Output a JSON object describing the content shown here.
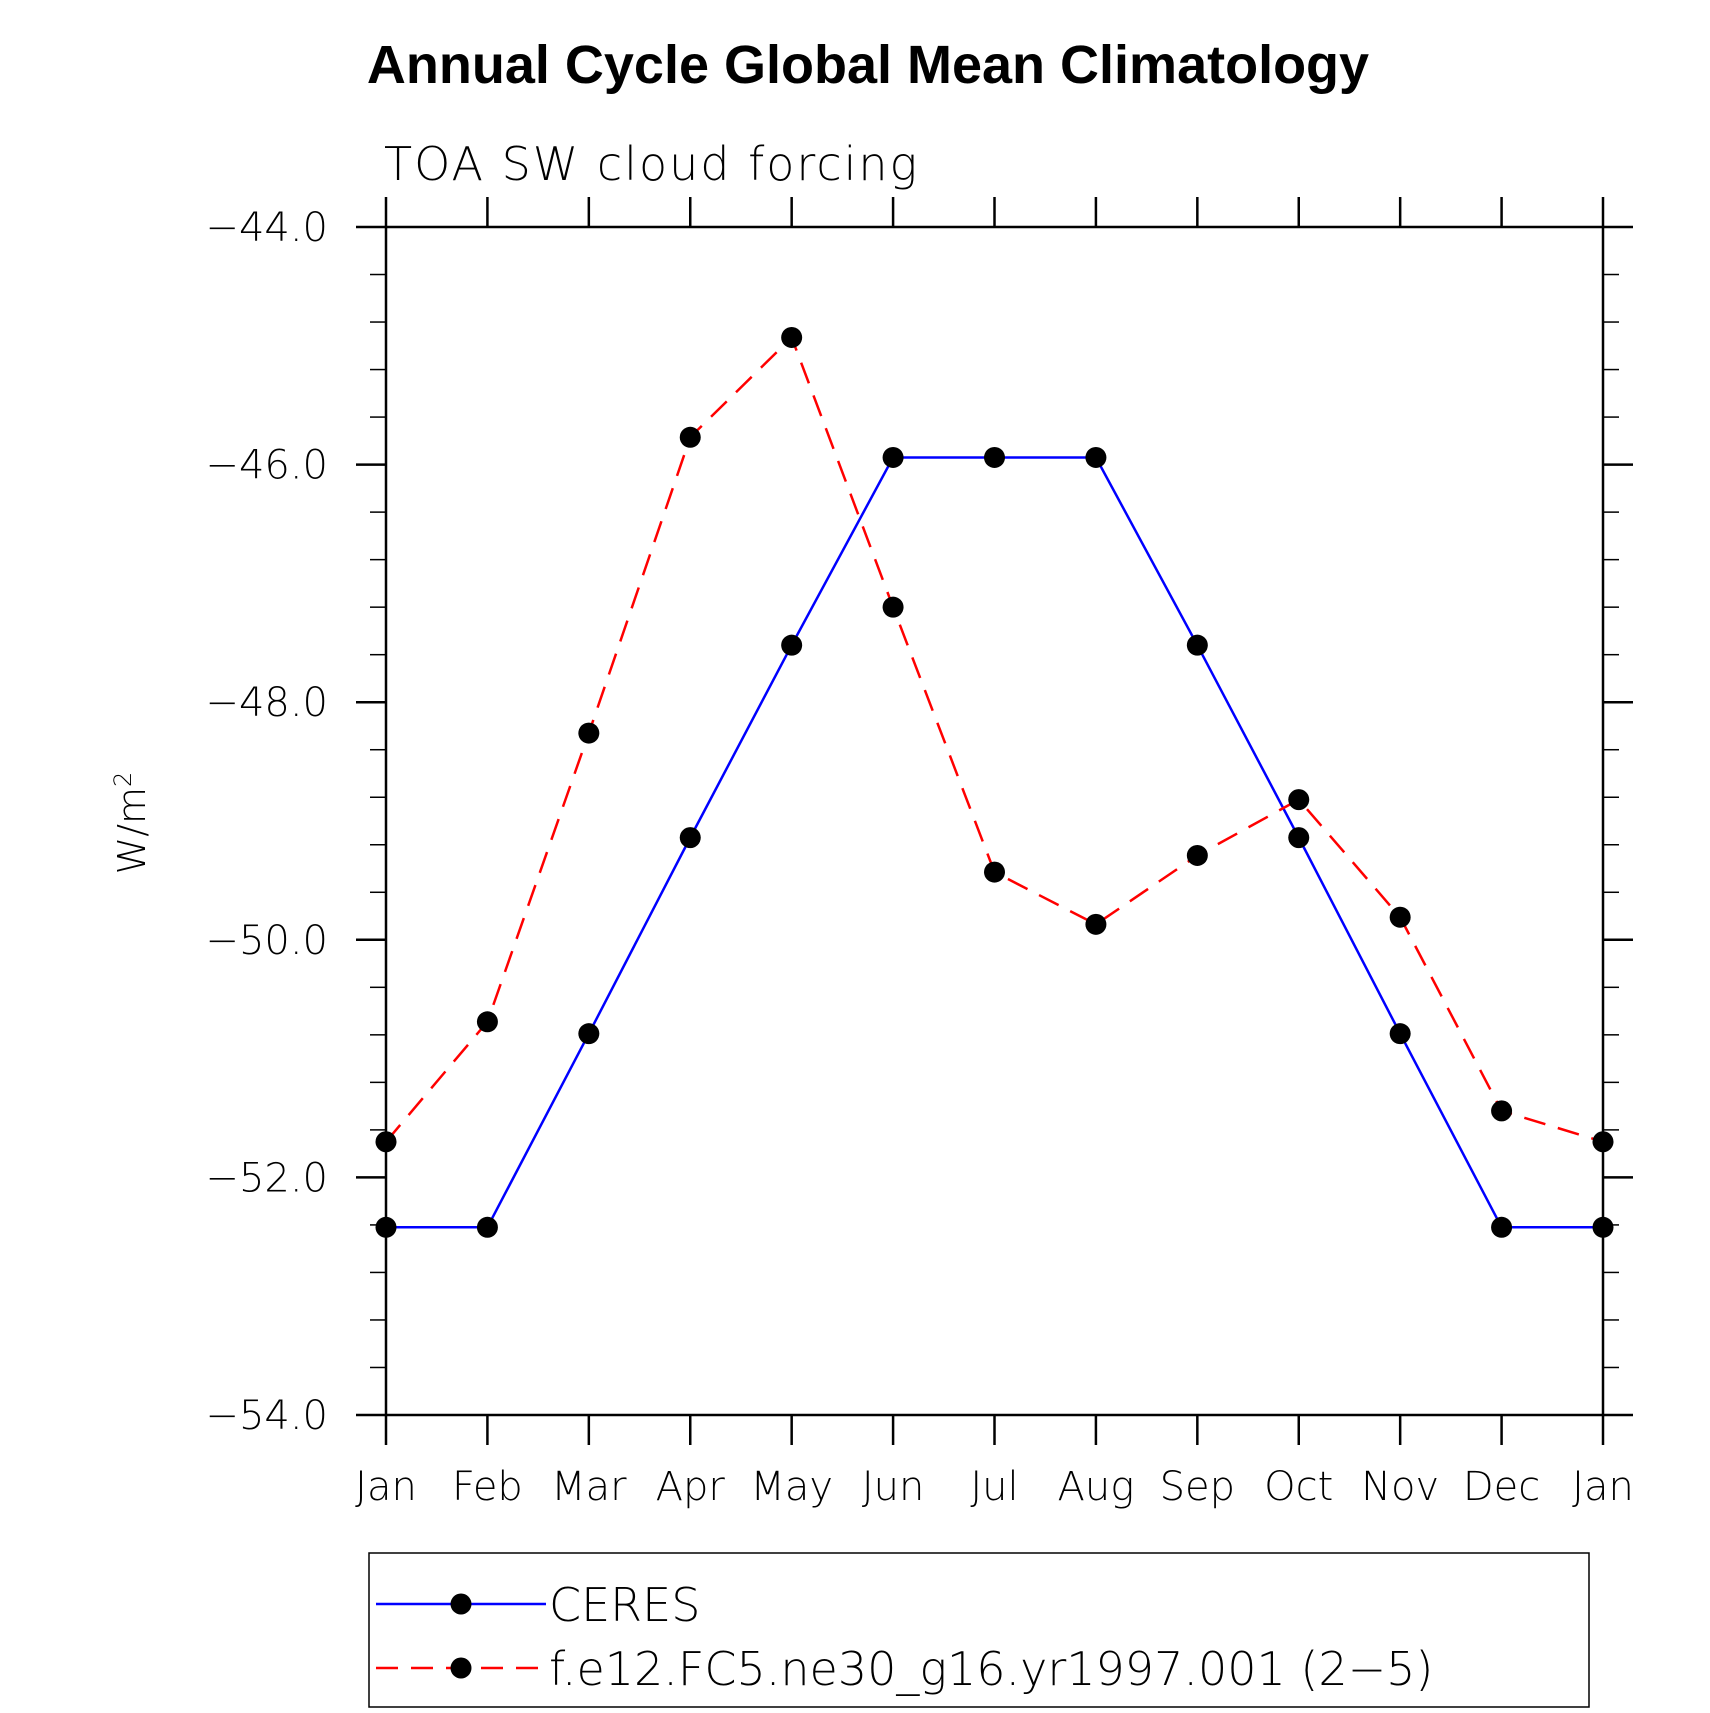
{
  "chart_data": {
    "type": "line",
    "title": "Annual Cycle Global Mean Climatology",
    "subtitle": "TOA SW cloud forcing",
    "xlabel": "",
    "ylabel": "W/m",
    "ylabel_superscript": "2",
    "categories": [
      "Jan",
      "Feb",
      "Mar",
      "Apr",
      "May",
      "Jun",
      "Jul",
      "Aug",
      "Sep",
      "Oct",
      "Nov",
      "Dec",
      "Jan"
    ],
    "ylim": [
      -54.0,
      -44.0
    ],
    "yticks": [
      -54.0,
      -52.0,
      -50.0,
      -48.0,
      -46.0,
      -44.0
    ],
    "ytick_labels": [
      "−54.0",
      "−52.0",
      "−50.0",
      "−48.0",
      "−46.0",
      "−44.0"
    ],
    "minor_ticks_per_major": 4,
    "grid": false,
    "legend_position": "bottom",
    "series": [
      {
        "name": "CERES",
        "color": "#0000ff",
        "line_style": "solid",
        "marker": "filled-circle",
        "values": [
          -52.42,
          -52.42,
          -50.79,
          -49.14,
          -47.52,
          -45.94,
          -45.94,
          -45.94,
          -47.52,
          -49.14,
          -50.79,
          -52.42,
          -52.42
        ]
      },
      {
        "name": "f.e12.FC5.ne30_g16.yr1997.001 (2−5)",
        "color": "#ff0000",
        "line_style": "dashed",
        "marker": "filled-circle",
        "values": [
          -51.7,
          -50.69,
          -48.26,
          -45.77,
          -44.93,
          -47.2,
          -49.43,
          -49.87,
          -49.29,
          -48.82,
          -49.81,
          -51.44,
          -51.7
        ]
      }
    ]
  }
}
